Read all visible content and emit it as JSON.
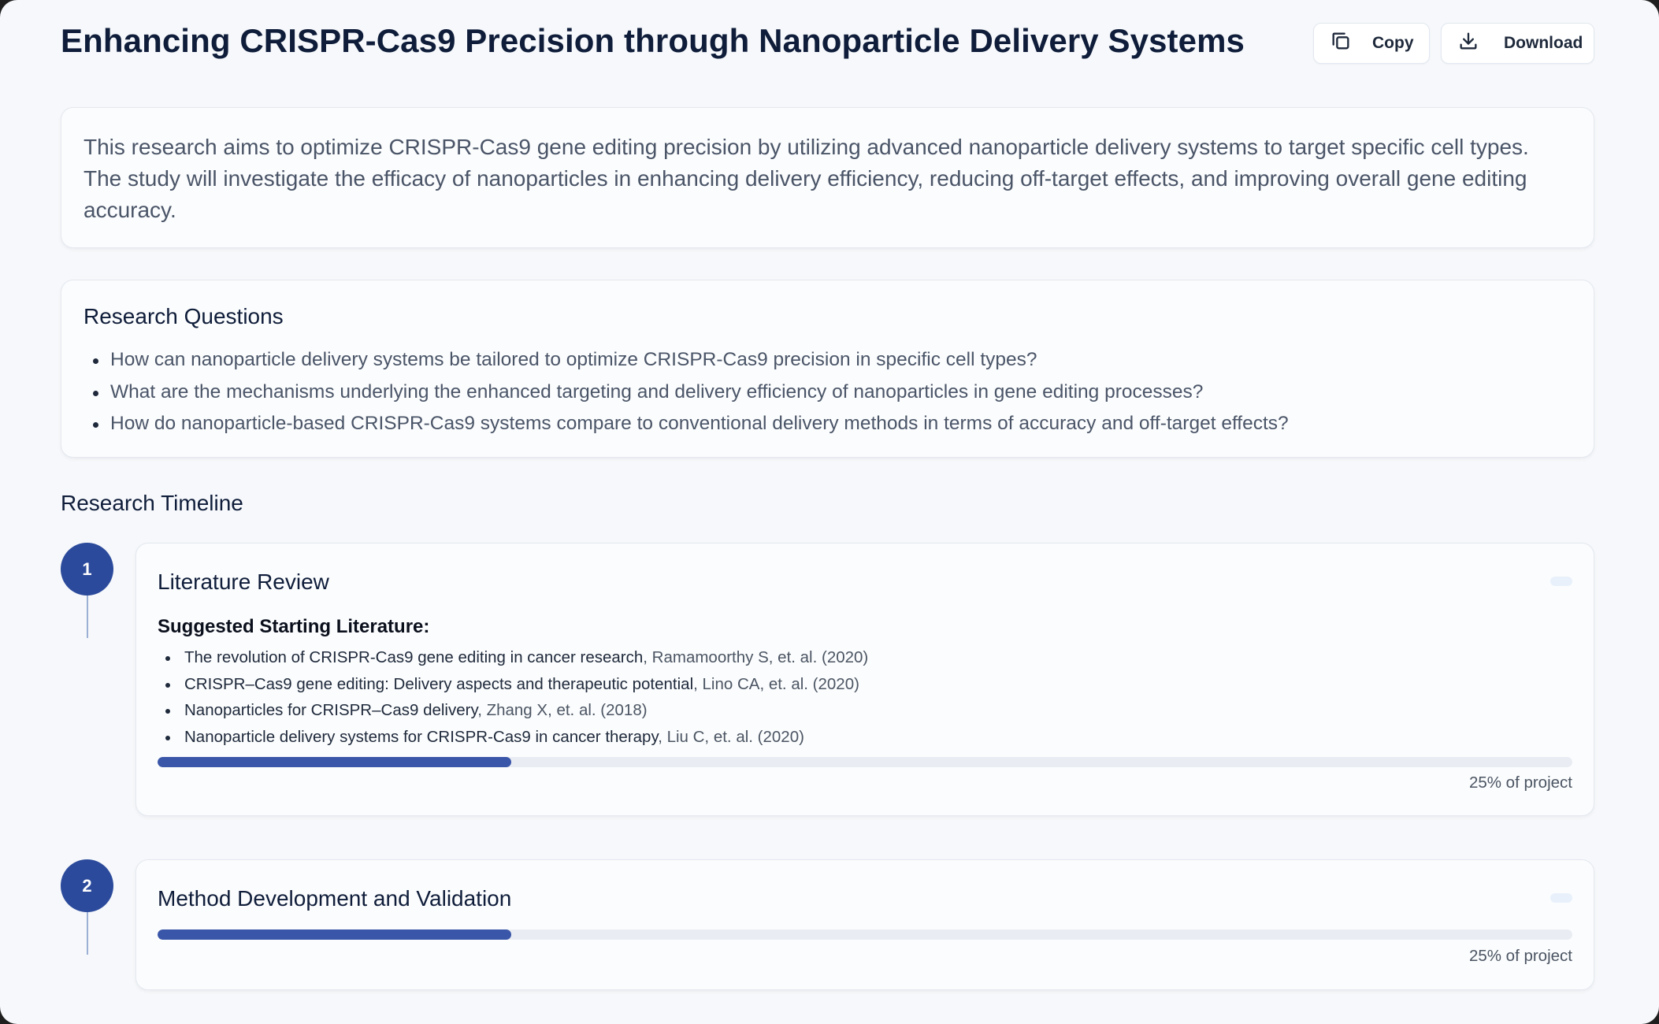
{
  "header": {
    "title": "Enhancing CRISPR-Cas9 Precision through Nanoparticle Delivery Systems",
    "copy_label": "Copy",
    "download_label": "Download"
  },
  "summary": "This research aims to optimize CRISPR-Cas9 gene editing precision by utilizing advanced nanoparticle delivery systems to target specific cell types. The study will investigate the efficacy of nanoparticles in enhancing delivery efficiency, reducing off-target effects, and improving overall gene editing accuracy.",
  "research_questions": {
    "heading": "Research Questions",
    "items": [
      "How can nanoparticle delivery systems be tailored to optimize CRISPR-Cas9 precision in specific cell types?",
      "What are the mechanisms underlying the enhanced targeting and delivery efficiency of nanoparticles in gene editing processes?",
      "How do nanoparticle-based CRISPR-Cas9 systems compare to conventional delivery methods in terms of accuracy and off-target effects?"
    ]
  },
  "timeline": {
    "heading": "Research Timeline",
    "phases": [
      {
        "number": "1",
        "title": "Literature Review",
        "literature_heading": "Suggested Starting Literature:",
        "literature": [
          {
            "title": "The revolution of CRISPR-Cas9 gene editing in cancer research",
            "authors": ", Ramamoorthy S, et. al. (2020)"
          },
          {
            "title": "CRISPR–Cas9 gene editing: Delivery aspects and therapeutic potential",
            "authors": ", Lino CA, et. al. (2020)"
          },
          {
            "title": "Nanoparticles for CRISPR–Cas9 delivery",
            "authors": ", Zhang X, et. al. (2018)"
          },
          {
            "title": "Nanoparticle delivery systems for CRISPR-Cas9 in cancer therapy",
            "authors": ", Liu C, et. al. (2020)"
          }
        ],
        "progress_percent": 25,
        "progress_label": "25% of project"
      },
      {
        "number": "2",
        "title": "Method Development and Validation",
        "progress_percent": 25,
        "progress_label": "25% of project"
      }
    ]
  },
  "colors": {
    "accent": "#2b4a9b",
    "progress_fill": "#3a56a8",
    "progress_track": "#e9edf3",
    "page_background": "#f6f8fb"
  },
  "icons": {
    "copy": "copy-icon",
    "download": "download-icon"
  }
}
